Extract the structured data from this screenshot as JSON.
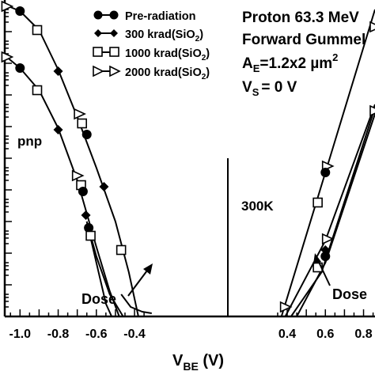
{
  "chart_data": {
    "type": "line",
    "xlabel_main": "V",
    "xlabel_sub": "BE",
    "xlabel_unit": " (V)",
    "xlim": [
      -1.08,
      0.86
    ],
    "ylim_log": [
      -12,
      -2
    ],
    "y_log_scale": true,
    "grid": false,
    "legend_position": "top-left",
    "x_ticks": [
      {
        "v": -1.0,
        "label": "-1.0"
      },
      {
        "v": -0.8,
        "label": "-0.8"
      },
      {
        "v": -0.6,
        "label": "-0.6"
      },
      {
        "v": -0.4,
        "label": "-0.4"
      },
      {
        "v": 0.4,
        "label": "0.4"
      },
      {
        "v": 0.6,
        "label": "0.6"
      },
      {
        "v": 0.8,
        "label": "0.8"
      }
    ],
    "legend": [
      {
        "key": "pre",
        "label": "Pre-radiation",
        "marker": "filled-circle"
      },
      {
        "key": "k300",
        "label": "300 krad(SiO",
        "sub": "2",
        "tail": ")",
        "marker": "filled-diamond"
      },
      {
        "key": "k1000",
        "label": "1000 krad(SiO",
        "sub": "2",
        "tail": ")",
        "marker": "open-square"
      },
      {
        "key": "k2000",
        "label": "2000 krad(SiO",
        "sub": "2",
        "tail": ")",
        "marker": "open-triangle-right"
      }
    ],
    "info_lines": {
      "line1": "Proton 63.3 MeV",
      "line2": "Forward Gummel",
      "line3_a": "A",
      "line3_a_sub": "E",
      "line3_b": "=1.2x2 µm",
      "line3_sup": "2",
      "line4_a": "V",
      "line4_a_sub": "S",
      "line4_b": "= 0 V"
    },
    "annotations": {
      "pnp": "pnp",
      "temperature": "300K",
      "dose_left": "Dose",
      "dose_right": "Dose"
    },
    "npn_series": {
      "upper": [
        {
          "x": -1.08,
          "y": -2.15
        },
        {
          "x": -1.0,
          "y": -2.35
        },
        {
          "x": -0.9,
          "y": -2.95
        },
        {
          "x": -0.8,
          "y": -4.2
        },
        {
          "x": -0.7,
          "y": -5.7
        },
        {
          "x": -0.6,
          "y": -7.3
        },
        {
          "x": -0.5,
          "y": -9.0
        },
        {
          "x": -0.43,
          "y": -10.6
        },
        {
          "x": -0.38,
          "y": -12.0
        }
      ],
      "lower": [
        {
          "x": -1.08,
          "y": -3.75
        },
        {
          "x": -1.0,
          "y": -4.15
        },
        {
          "x": -0.9,
          "y": -4.85
        },
        {
          "x": -0.8,
          "y": -6.05
        },
        {
          "x": -0.7,
          "y": -7.7
        },
        {
          "x": -0.6,
          "y": -9.8
        },
        {
          "x": -0.53,
          "y": -11.2
        },
        {
          "x": -0.48,
          "y": -12.0
        }
      ],
      "lower_branches": [
        [
          {
            "x": -0.65,
            "y": -9.0
          },
          {
            "x": -0.6,
            "y": -10.3
          },
          {
            "x": -0.55,
            "y": -11.6
          },
          {
            "x": -0.52,
            "y": -12.0
          }
        ],
        [
          {
            "x": -0.65,
            "y": -9.0
          },
          {
            "x": -0.6,
            "y": -10.1
          },
          {
            "x": -0.53,
            "y": -11.3
          },
          {
            "x": -0.46,
            "y": -12.0
          }
        ]
      ],
      "tail": [
        {
          "x": -0.47,
          "y": -11.3
        },
        {
          "x": -0.42,
          "y": -11.7
        },
        {
          "x": -0.36,
          "y": -11.85
        },
        {
          "x": -0.31,
          "y": -11.9
        }
      ]
    },
    "pnp_series": {
      "pre_radiation": [
        {
          "x": 0.37,
          "y": -12.0
        },
        {
          "x": 0.6,
          "y": -7.45
        },
        {
          "x": 0.86,
          "y": -2.3
        }
      ],
      "k300": [
        {
          "x": 0.45,
          "y": -12.0
        },
        {
          "x": 0.6,
          "y": -10.3
        },
        {
          "x": 0.86,
          "y": -5.6
        }
      ],
      "k1000": [
        {
          "x": 0.42,
          "y": -12.0
        },
        {
          "x": 0.58,
          "y": -10.6
        },
        {
          "x": 0.86,
          "y": -5.4
        }
      ],
      "k2000": [
        {
          "x": 0.39,
          "y": -12.0
        },
        {
          "x": 0.6,
          "y": -9.6
        },
        {
          "x": 0.86,
          "y": -5.3
        }
      ]
    },
    "markers": [
      {
        "x": -1.07,
        "y": -2.2,
        "m": "tri"
      },
      {
        "x": -1.0,
        "y": -2.35,
        "m": "circle"
      },
      {
        "x": -0.91,
        "y": -2.95,
        "m": "square"
      },
      {
        "x": -0.8,
        "y": -4.25,
        "m": "diamond"
      },
      {
        "x": -0.69,
        "y": -5.6,
        "m": "tri"
      },
      {
        "x": -0.675,
        "y": -5.9,
        "m": "square"
      },
      {
        "x": -0.65,
        "y": -6.25,
        "m": "circle"
      },
      {
        "x": -0.56,
        "y": -7.9,
        "m": "diamond"
      },
      {
        "x": -0.47,
        "y": -9.9,
        "m": "square"
      },
      {
        "x": -1.07,
        "y": -3.8,
        "m": "tri"
      },
      {
        "x": -1.0,
        "y": -4.15,
        "m": "circle"
      },
      {
        "x": -0.91,
        "y": -4.85,
        "m": "square"
      },
      {
        "x": -0.8,
        "y": -6.1,
        "m": "diamond"
      },
      {
        "x": -0.7,
        "y": -7.55,
        "m": "tri"
      },
      {
        "x": -0.68,
        "y": -7.85,
        "m": "square"
      },
      {
        "x": -0.67,
        "y": -8.05,
        "m": "circle"
      },
      {
        "x": -0.655,
        "y": -8.8,
        "m": "diamond"
      },
      {
        "x": -0.64,
        "y": -9.2,
        "m": "circle"
      },
      {
        "x": -0.63,
        "y": -9.45,
        "m": "square"
      },
      {
        "x": 0.61,
        "y": -7.25,
        "m": "tri"
      },
      {
        "x": 0.6,
        "y": -7.45,
        "m": "circle"
      },
      {
        "x": 0.56,
        "y": -8.4,
        "m": "square"
      },
      {
        "x": 0.61,
        "y": -9.55,
        "m": "tri"
      },
      {
        "x": 0.6,
        "y": -9.9,
        "m": "diamond"
      },
      {
        "x": 0.6,
        "y": -10.1,
        "m": "circle"
      },
      {
        "x": 0.56,
        "y": -10.45,
        "m": "square"
      },
      {
        "x": 0.39,
        "y": -11.7,
        "m": "tri"
      },
      {
        "x": 0.86,
        "y": -2.85,
        "m": "tri"
      },
      {
        "x": 0.86,
        "y": -5.5,
        "m": "tri"
      }
    ]
  }
}
